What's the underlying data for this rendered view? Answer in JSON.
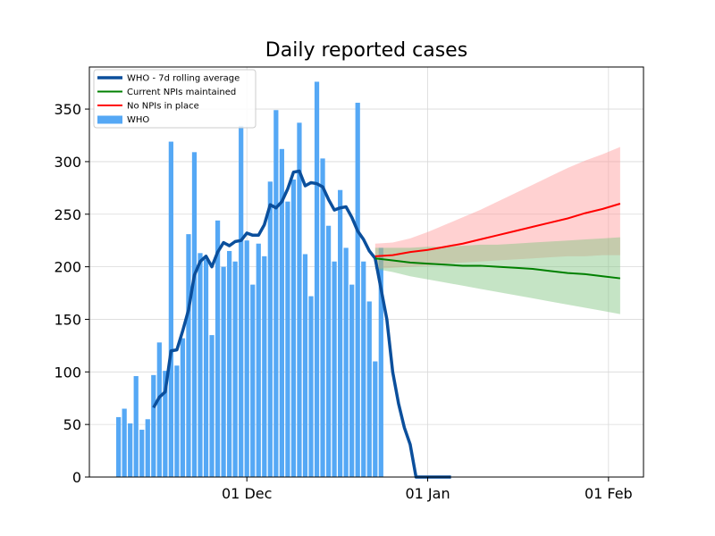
{
  "chart_data": {
    "type": "bar",
    "title": "Daily reported cases",
    "xlabel": "",
    "ylabel": "",
    "grid": true,
    "legend_placement": "top-left",
    "x_axis": {
      "type": "date",
      "range": [
        "2020-11-04",
        "2021-02-07"
      ],
      "ticks": [
        {
          "date": "2020-12-01",
          "label": "01 Dec"
        },
        {
          "date": "2021-01-01",
          "label": "01 Jan"
        },
        {
          "date": "2021-02-01",
          "label": "01 Feb"
        }
      ]
    },
    "y_axis": {
      "range": [
        0,
        390
      ],
      "ticks": [
        0,
        50,
        100,
        150,
        200,
        250,
        300,
        350
      ]
    },
    "legend": [
      {
        "label": "WHO - 7d rolling average",
        "kind": "thick-line",
        "color": "#0b4f9c"
      },
      {
        "label": "Current NPIs maintained",
        "kind": "line",
        "color": "#008000"
      },
      {
        "label": "No NPIs in place",
        "kind": "line",
        "color": "#ff0000"
      },
      {
        "label": "WHO",
        "kind": "patch",
        "color": "#55a8f5"
      }
    ],
    "series": [
      {
        "name": "WHO",
        "kind": "bar",
        "color": "#55a8f5",
        "start_date": "2020-11-09",
        "values": [
          57,
          65,
          51,
          96,
          45,
          55,
          97,
          128,
          101,
          319,
          106,
          132,
          231,
          309,
          213,
          207,
          135,
          244,
          200,
          215,
          205,
          334,
          225,
          183,
          222,
          210,
          281,
          349,
          312,
          262,
          283,
          337,
          212,
          172,
          376,
          303,
          239,
          205,
          273,
          218,
          183,
          356,
          205,
          167,
          110,
          218
        ]
      },
      {
        "name": "WHO - 7d rolling average",
        "kind": "line",
        "color": "#0b4f9c",
        "points": [
          [
            "2020-11-15",
            66
          ],
          [
            "2020-11-16",
            76
          ],
          [
            "2020-11-17",
            81
          ],
          [
            "2020-11-18",
            120
          ],
          [
            "2020-11-19",
            121
          ],
          [
            "2020-11-20",
            139
          ],
          [
            "2020-11-21",
            159
          ],
          [
            "2020-11-22",
            192
          ],
          [
            "2020-11-23",
            205
          ],
          [
            "2020-11-24",
            210
          ],
          [
            "2020-11-25",
            200
          ],
          [
            "2020-11-26",
            214
          ],
          [
            "2020-11-27",
            223
          ],
          [
            "2020-11-28",
            220
          ],
          [
            "2020-11-29",
            224
          ],
          [
            "2020-11-30",
            225
          ],
          [
            "2020-12-01",
            232
          ],
          [
            "2020-12-02",
            230
          ],
          [
            "2020-12-03",
            230
          ],
          [
            "2020-12-04",
            240
          ],
          [
            "2020-12-05",
            259
          ],
          [
            "2020-12-06",
            256
          ],
          [
            "2020-12-07",
            262
          ],
          [
            "2020-12-08",
            274
          ],
          [
            "2020-12-09",
            290
          ],
          [
            "2020-12-10",
            291
          ],
          [
            "2020-12-11",
            277
          ],
          [
            "2020-12-12",
            280
          ],
          [
            "2020-12-13",
            279
          ],
          [
            "2020-12-14",
            276
          ],
          [
            "2020-12-15",
            264
          ],
          [
            "2020-12-16",
            254
          ],
          [
            "2020-12-17",
            256
          ],
          [
            "2020-12-18",
            257
          ],
          [
            "2020-12-19",
            247
          ],
          [
            "2020-12-20",
            234
          ],
          [
            "2020-12-21",
            226
          ],
          [
            "2020-12-22",
            215
          ],
          [
            "2020-12-23",
            208
          ],
          [
            "2020-12-24",
            179
          ],
          [
            "2020-12-25",
            150
          ],
          [
            "2020-12-26",
            100
          ],
          [
            "2020-12-27",
            70
          ],
          [
            "2020-12-28",
            47
          ],
          [
            "2020-12-29",
            31
          ],
          [
            "2020-12-30",
            0
          ],
          [
            "2021-01-05",
            0
          ]
        ]
      },
      {
        "name": "No NPIs in place",
        "kind": "line-with-band",
        "color": "#ff0000",
        "band_color": "#ff9a9a",
        "dates": [
          "2020-12-23",
          "2020-12-26",
          "2020-12-29",
          "2021-01-01",
          "2021-01-04",
          "2021-01-07",
          "2021-01-10",
          "2021-01-13",
          "2021-01-16",
          "2021-01-19",
          "2021-01-22",
          "2021-01-25",
          "2021-01-28",
          "2021-01-31",
          "2021-02-03"
        ],
        "values": [
          210,
          211,
          214,
          216,
          219,
          222,
          226,
          230,
          234,
          238,
          242,
          246,
          251,
          255,
          260
        ],
        "lower": [
          198,
          199,
          200,
          201,
          203,
          204,
          205,
          206,
          207,
          208,
          209,
          210,
          210,
          211,
          211
        ],
        "upper": [
          222,
          223,
          227,
          233,
          240,
          247,
          254,
          262,
          270,
          278,
          286,
          294,
          301,
          307,
          314
        ]
      },
      {
        "name": "Current NPIs maintained",
        "kind": "line-with-band",
        "color": "#008000",
        "band_color": "#7fc47f",
        "dates": [
          "2020-12-23",
          "2020-12-26",
          "2020-12-29",
          "2021-01-01",
          "2021-01-04",
          "2021-01-07",
          "2021-01-10",
          "2021-01-13",
          "2021-01-16",
          "2021-01-19",
          "2021-01-22",
          "2021-01-25",
          "2021-01-28",
          "2021-01-31",
          "2021-02-03"
        ],
        "values": [
          208,
          206,
          204,
          203,
          202,
          201,
          201,
          200,
          199,
          198,
          196,
          194,
          193,
          191,
          189
        ],
        "lower": [
          198,
          195,
          191,
          188,
          185,
          182,
          179,
          176,
          173,
          170,
          167,
          164,
          161,
          158,
          155
        ],
        "upper": [
          218,
          218,
          218,
          219,
          219,
          220,
          221,
          221,
          222,
          223,
          224,
          225,
          226,
          227,
          228
        ]
      }
    ]
  }
}
